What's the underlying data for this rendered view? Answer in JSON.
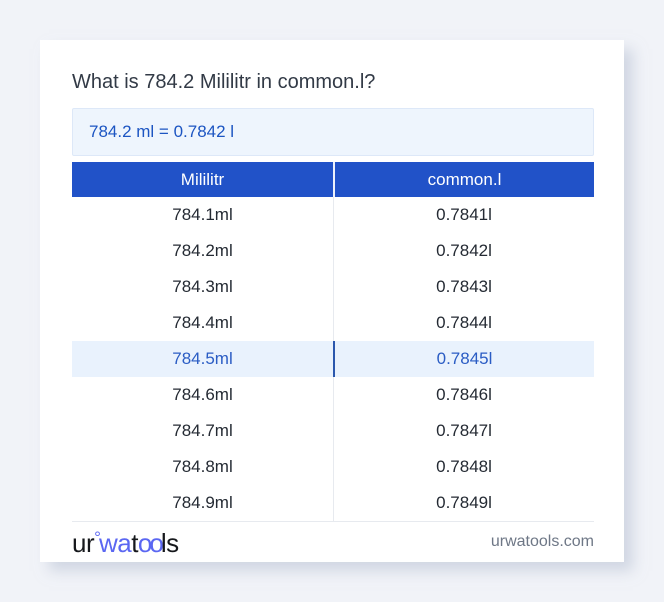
{
  "title": "What is 784.2 Mililitr in common.l?",
  "result_box": {
    "text": "784.2 ml = 0.7842 l"
  },
  "table": {
    "headers": [
      "Mililitr",
      "common.l"
    ],
    "rows": [
      {
        "ml": "784.1ml",
        "l": "0.7841l",
        "highlighted": false
      },
      {
        "ml": "784.2ml",
        "l": "0.7842l",
        "highlighted": false
      },
      {
        "ml": "784.3ml",
        "l": "0.7843l",
        "highlighted": false
      },
      {
        "ml": "784.4ml",
        "l": "0.7844l",
        "highlighted": false
      },
      {
        "ml": "784.5ml",
        "l": "0.7845l",
        "highlighted": true
      },
      {
        "ml": "784.6ml",
        "l": "0.7846l",
        "highlighted": false
      },
      {
        "ml": "784.7ml",
        "l": "0.7847l",
        "highlighted": false
      },
      {
        "ml": "784.8ml",
        "l": "0.7848l",
        "highlighted": false
      },
      {
        "ml": "784.9ml",
        "l": "0.7849l",
        "highlighted": false
      }
    ]
  },
  "footer": {
    "logo": {
      "seg1": "ur",
      "degree": "°",
      "seg2": "wa",
      "seg3": "t",
      "seg4": "oo",
      "seg5": "ls"
    },
    "domain": "urwatools.com"
  },
  "colors": {
    "page-bg": "#f1f3f8",
    "card-bg": "#ffffff",
    "title-text": "#323a46",
    "header-blue": "#2152c8",
    "result-bg": "#eef5fd",
    "result-border": "#dde8f8",
    "result-text": "#1c55c2",
    "row-text": "#242a33",
    "divider-gray": "#e7eaef",
    "highlight-bg": "#e9f2fd",
    "highlight-text": "#2a5cc4",
    "highlight-divider": "#2b57ad",
    "footer-domain-text": "#6e7786",
    "logo-dark": "#16181c",
    "logo-blue": "#5b67f2"
  }
}
